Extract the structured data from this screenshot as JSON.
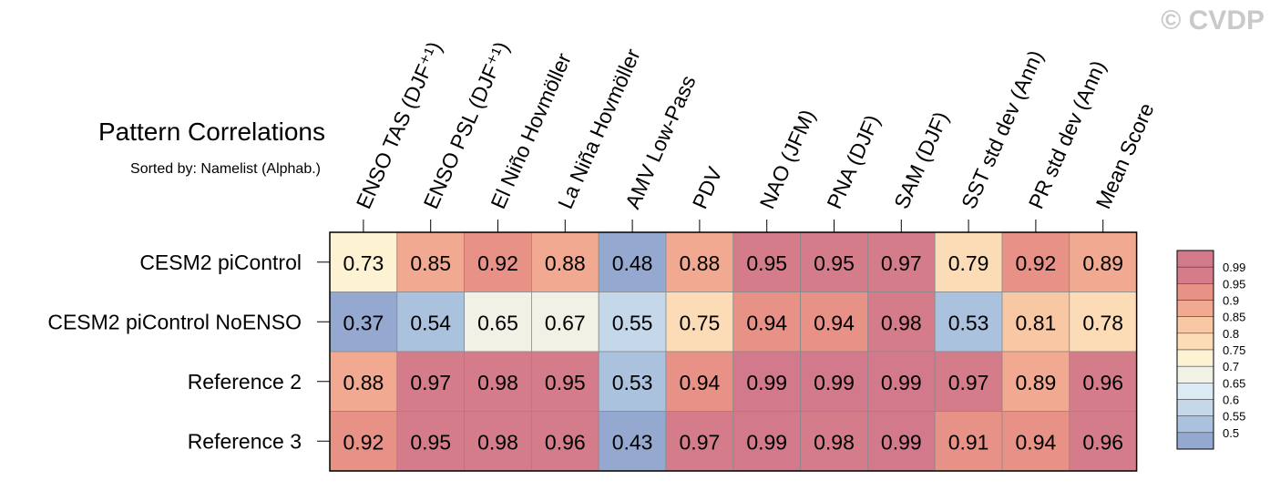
{
  "watermark": "© CVDP",
  "chart_data": {
    "type": "heatmap",
    "title": "Pattern Correlations",
    "subtitle": "Sorted by: Namelist (Alphab.)",
    "columns": [
      "ENSO TAS (DJF⁺¹)",
      "ENSO PSL (DJF⁺¹)",
      "El Niño Hovmöller",
      "La Niña Hovmöller",
      "AMV Low-Pass",
      "PDV",
      "NAO (JFM)",
      "PNA (DJF)",
      "SAM (DJF)",
      "SST std dev (Ann)",
      "PR std dev (Ann)",
      "Mean Score"
    ],
    "rows": [
      {
        "name": "CESM2 piControl",
        "values": [
          "0.73",
          "0.85",
          "0.92",
          "0.88",
          "0.48",
          "0.88",
          "0.95",
          "0.95",
          "0.97",
          "0.79",
          "0.92",
          "0.89"
        ]
      },
      {
        "name": "CESM2 piControl NoENSO",
        "values": [
          "0.37",
          "0.54",
          "0.65",
          "0.67",
          "0.55",
          "0.75",
          "0.94",
          "0.94",
          "0.98",
          "0.53",
          "0.81",
          "0.78"
        ]
      },
      {
        "name": "Reference 2",
        "values": [
          "0.88",
          "0.97",
          "0.98",
          "0.95",
          "0.53",
          "0.94",
          "0.99",
          "0.99",
          "0.99",
          "0.97",
          "0.89",
          "0.96"
        ]
      },
      {
        "name": "Reference 3",
        "values": [
          "0.92",
          "0.95",
          "0.98",
          "0.96",
          "0.43",
          "0.97",
          "0.99",
          "0.98",
          "0.99",
          "0.91",
          "0.94",
          "0.96"
        ]
      }
    ],
    "colorbar": {
      "levels": [
        "0.99",
        "0.95",
        "0.9",
        "0.85",
        "0.8",
        "0.75",
        "0.7",
        "0.65",
        "0.6",
        "0.55",
        "0.5"
      ],
      "thresholds": [
        0.5,
        0.55,
        0.6,
        0.65,
        0.7,
        0.75,
        0.8,
        0.85,
        0.9,
        0.95,
        0.99
      ],
      "colors": [
        "#95a8d0",
        "#aac2dd",
        "#c4d8e9",
        "#dcebf3",
        "#f1f1e6",
        "#fdf3d2",
        "#fbdcb7",
        "#f8c7a4",
        "#f1aa91",
        "#e79187",
        "#d57c8a",
        "#d2798b"
      ]
    }
  }
}
